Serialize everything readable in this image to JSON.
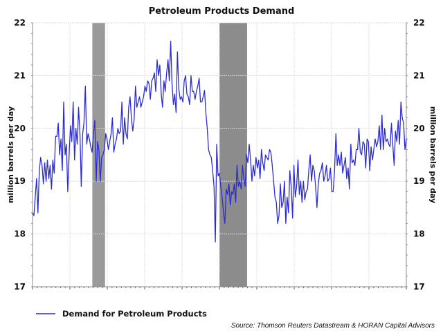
{
  "chart_data": {
    "type": "line",
    "title": "Petroleum Products Demand",
    "ylabel_left": "million barrels per day",
    "ylabel_right": "million barrels per day",
    "ylim": [
      17,
      22
    ],
    "yticks": [
      17,
      18,
      19,
      20,
      21,
      22
    ],
    "yticks_labels": [
      "17",
      "18",
      "19",
      "20",
      "21",
      "22"
    ],
    "xlim": [
      0,
      250
    ],
    "x_gridlines": [
      0,
      25,
      50,
      75,
      100,
      125,
      150,
      175,
      200,
      225,
      250
    ],
    "grid": true,
    "legend_position": "bottom-left",
    "shaded_regions": [
      {
        "name": "recession-1",
        "x_start": 40,
        "x_end": 48.5,
        "color": "#9a9a9a"
      },
      {
        "name": "recession-2",
        "x_start": 125,
        "x_end": 143.5,
        "color": "#8c8c8c"
      }
    ],
    "series": [
      {
        "name": "Demand for Petroleum Products",
        "color": "#2b2bd6",
        "values": [
          18.4,
          18.35,
          18.7,
          19.05,
          18.4,
          19.2,
          19.45,
          19.3,
          18.95,
          19.35,
          19.0,
          19.4,
          19.05,
          19.3,
          18.85,
          19.4,
          19.15,
          19.85,
          19.85,
          20.1,
          19.5,
          19.8,
          19.2,
          20.5,
          19.5,
          19.7,
          18.8,
          19.5,
          20.05,
          19.75,
          20.5,
          19.4,
          20.0,
          19.7,
          20.4,
          19.9,
          18.9,
          19.9,
          20.1,
          20.8,
          19.7,
          19.9,
          19.8,
          19.65,
          19.55,
          19.9,
          20.15,
          19.0,
          19.75,
          19.6,
          19.0,
          19.45,
          19.5,
          19.6,
          19.9,
          19.8,
          19.6,
          19.75,
          19.9,
          20.2,
          19.55,
          19.7,
          19.8,
          20.0,
          19.9,
          19.95,
          20.5,
          19.7,
          20.2,
          19.9,
          19.8,
          20.4,
          20.6,
          20.2,
          19.95,
          20.15,
          20.8,
          20.4,
          20.5,
          20.6,
          20.4,
          20.5,
          20.6,
          20.8,
          20.7,
          20.9,
          20.85,
          20.55,
          20.9,
          20.95,
          21.05,
          20.7,
          21.3,
          21.0,
          21.2,
          20.65,
          20.4,
          20.9,
          20.7,
          21.05,
          21.3,
          20.9,
          21.65,
          20.85,
          20.45,
          20.65,
          20.3,
          21.45,
          20.75,
          20.55,
          20.6,
          20.5,
          20.9,
          21.0,
          20.65,
          20.6,
          20.45,
          21.0,
          20.7,
          20.7,
          20.55,
          20.7,
          20.8,
          20.95,
          20.5,
          20.5,
          20.6,
          20.72,
          20.3,
          20.0,
          19.6,
          19.5,
          19.45,
          19.2,
          18.9,
          17.85,
          19.7,
          19.1,
          19.15,
          18.9,
          18.7,
          18.4,
          18.2,
          18.85,
          18.75,
          18.95,
          18.55,
          18.8,
          18.75,
          18.95,
          18.6,
          19.3,
          18.9,
          19.0,
          18.85,
          19.3,
          19.05,
          18.9,
          19.5,
          19.35,
          19.7,
          19.4,
          19.0,
          19.3,
          19.1,
          19.45,
          19.25,
          19.4,
          19.05,
          19.6,
          19.35,
          19.2,
          19.5,
          19.45,
          19.4,
          19.6,
          19.55,
          19.3,
          19.0,
          18.7,
          18.6,
          18.2,
          18.35,
          18.95,
          18.5,
          18.6,
          19.0,
          18.2,
          18.7,
          18.4,
          19.2,
          18.9,
          18.3,
          19.3,
          18.7,
          18.9,
          19.4,
          18.75,
          19.0,
          18.6,
          19.0,
          18.65,
          18.8,
          18.85,
          19.2,
          19.5,
          19.0,
          19.3,
          19.2,
          18.9,
          18.5,
          18.95,
          19.15,
          19.2,
          19.35,
          19.0,
          19.1,
          19.3,
          19.0,
          19.05,
          19.25,
          18.8,
          18.8,
          19.2,
          19.9,
          19.3,
          19.5,
          19.3,
          19.55,
          19.15,
          19.3,
          19.45,
          19.05,
          19.25,
          18.85,
          19.7,
          19.35,
          19.4,
          19.3,
          19.6,
          19.6,
          20.0,
          19.55,
          19.5,
          19.75,
          19.7,
          19.25,
          19.8,
          19.75,
          19.2,
          19.65,
          19.4,
          19.6,
          19.8,
          19.65,
          19.75,
          20.05,
          19.6,
          20.25,
          19.6,
          20.0,
          19.75,
          19.8,
          19.7,
          19.65,
          20.1,
          19.7,
          19.3,
          19.95,
          19.75,
          20.15,
          19.7,
          20.5,
          20.2,
          20.1,
          19.6,
          19.8
        ]
      }
    ],
    "source_note": "Source: Thomson Reuters Datastream & HORAN Capital Advisors"
  }
}
